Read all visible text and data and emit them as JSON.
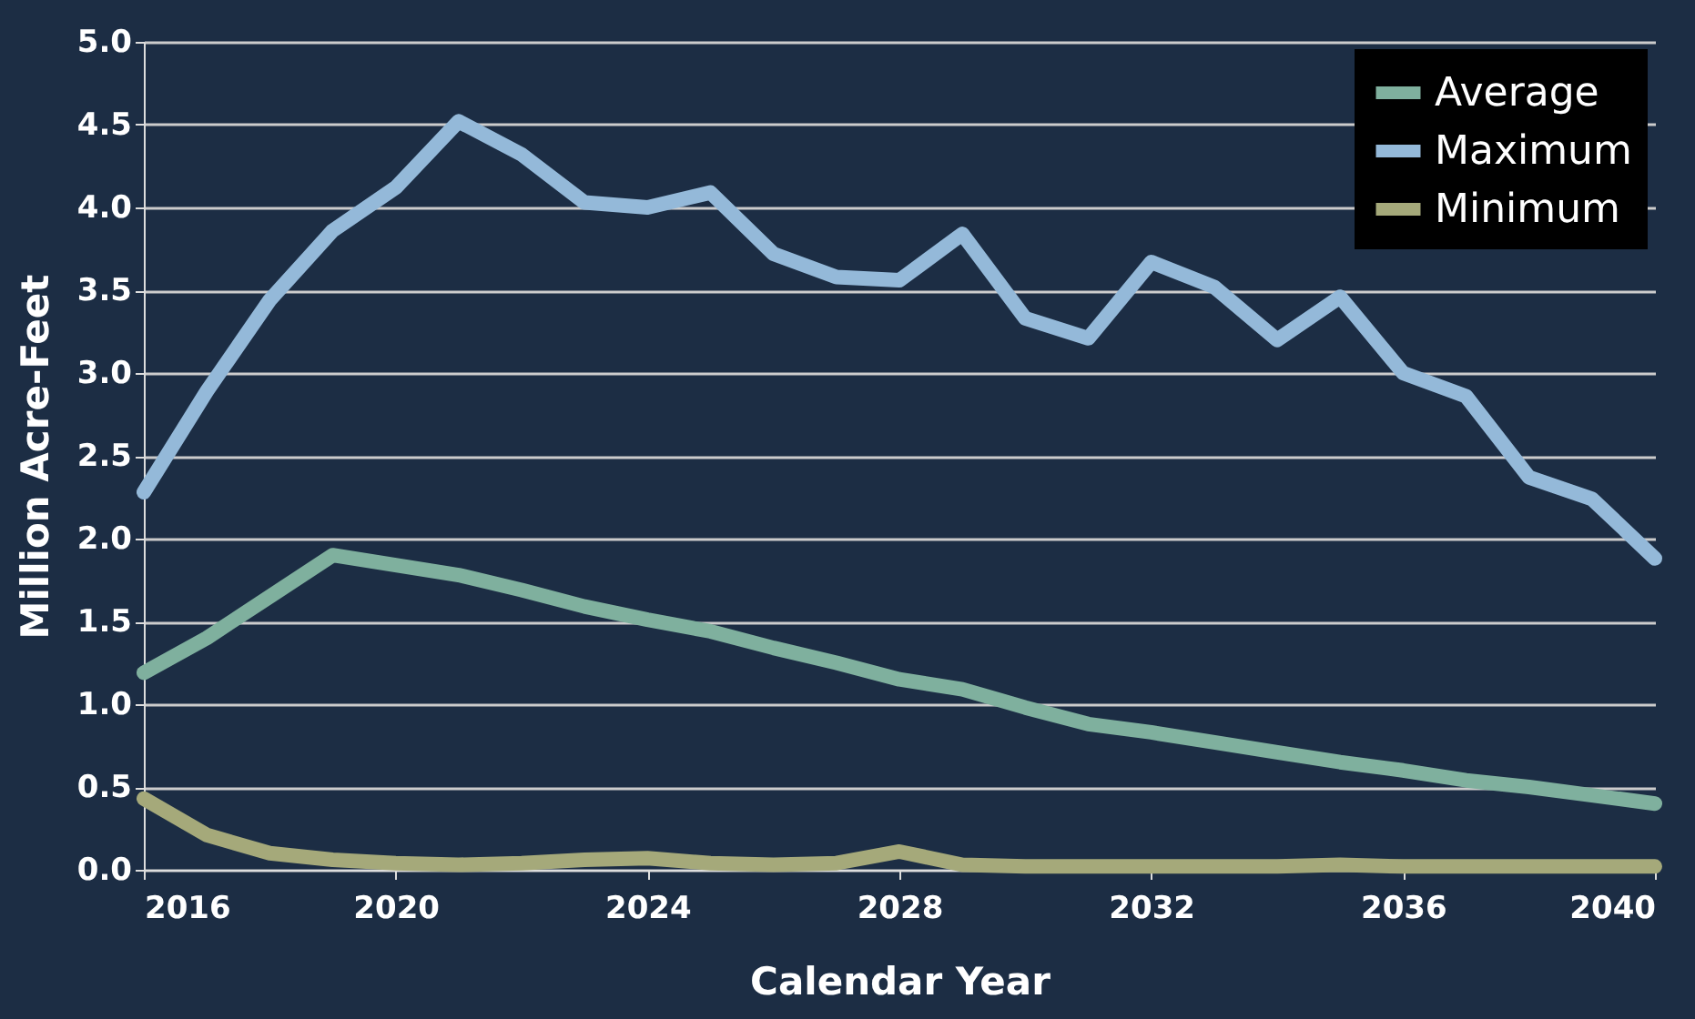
{
  "chart_data": {
    "type": "line",
    "xlabel": "Calendar Year",
    "ylabel": "Million Acre-Feet",
    "x": [
      2016,
      2017,
      2018,
      2019,
      2020,
      2021,
      2022,
      2023,
      2024,
      2025,
      2026,
      2027,
      2028,
      2029,
      2030,
      2031,
      2032,
      2033,
      2034,
      2035,
      2036,
      2037,
      2038,
      2039,
      2040
    ],
    "series": [
      {
        "name": "Average",
        "color": "#7fb09e",
        "values": [
          1.19,
          1.4,
          1.65,
          1.9,
          1.84,
          1.78,
          1.69,
          1.59,
          1.51,
          1.44,
          1.34,
          1.25,
          1.15,
          1.09,
          0.98,
          0.88,
          0.83,
          0.77,
          0.71,
          0.65,
          0.6,
          0.54,
          0.5,
          0.45,
          0.4
        ]
      },
      {
        "name": "Maximum",
        "color": "#94b9d9",
        "values": [
          2.28,
          2.89,
          3.44,
          3.86,
          4.12,
          4.52,
          4.32,
          4.03,
          4.0,
          4.09,
          3.72,
          3.58,
          3.56,
          3.84,
          3.33,
          3.21,
          3.67,
          3.52,
          3.2,
          3.46,
          3.0,
          2.86,
          2.37,
          2.24,
          1.88
        ]
      },
      {
        "name": "Minimum",
        "color": "#a5a97a",
        "values": [
          0.43,
          0.21,
          0.1,
          0.06,
          0.04,
          0.03,
          0.04,
          0.06,
          0.07,
          0.04,
          0.03,
          0.04,
          0.11,
          0.03,
          0.02,
          0.02,
          0.02,
          0.02,
          0.02,
          0.03,
          0.02,
          0.02,
          0.02,
          0.02,
          0.02
        ]
      }
    ],
    "xlim": [
      2016,
      2040
    ],
    "xticks": [
      2016,
      2020,
      2024,
      2028,
      2032,
      2036,
      2040
    ],
    "ylim": [
      0,
      5
    ],
    "yticks": [
      {
        "value": 0,
        "label": "0.0"
      },
      0.5,
      {
        "value": 1,
        "label": "1.0"
      },
      1.5,
      {
        "value": 2,
        "label": "2.0"
      },
      2.5,
      {
        "value": 3,
        "label": "3.0"
      },
      3.5,
      {
        "value": 4,
        "label": "4.0"
      },
      4.5,
      {
        "value": 5,
        "label": "5.0"
      }
    ],
    "grid": "y",
    "legend": "top right",
    "marker": "none",
    "line_style": "solid"
  }
}
